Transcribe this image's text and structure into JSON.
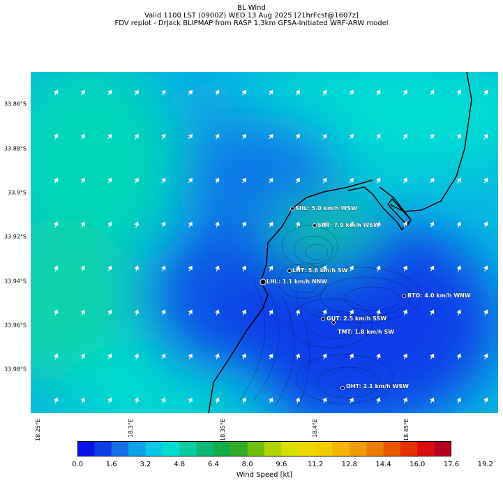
{
  "title": {
    "line1": "BL Wind",
    "line2": "Valid 1100 LST (0900Z) WED 13 Aug 2025 [21hrFcst@1607z]",
    "line3": "FDV replot - DrJack BLIPMAP from RASP 1.3km GFSA-Initiated WRF-ARW model"
  },
  "lat_ticks": [
    "33.86°S",
    "33.88°S",
    "33.9°S",
    "33.92°S",
    "33.94°S",
    "33.96°S",
    "33.98°S"
  ],
  "lon_ticks": [
    "18.25°E",
    "18.3°E",
    "18.35°E",
    "18.4°E",
    "18.45°E"
  ],
  "stations": [
    {
      "label": "SHL: 5.0 km/h WSW"
    },
    {
      "label": "SHT: 7.9 km/h WSW"
    },
    {
      "label": "LHT: 5.6 km/h SW"
    },
    {
      "label": "LHL: 1.1 km/h NNW"
    },
    {
      "label": "BTO: 4.0 km/h WNW"
    },
    {
      "label": "GUT: 2.5 km/h SSW"
    },
    {
      "label": "TMT: 1.8 km/h SW"
    },
    {
      "label": "OHT: 2.1 km/h WSW"
    }
  ],
  "colorbar": {
    "label": "Wind Speed [kt]",
    "ticks": [
      "0.0",
      "1.6",
      "3.2",
      "4.8",
      "6.4",
      "8.0",
      "9.6",
      "11.2",
      "12.8",
      "14.4",
      "16.0",
      "17.6",
      "19.2"
    ],
    "colors": [
      "#0a12e6",
      "#0c3ee8",
      "#1470ea",
      "#0aa2e8",
      "#06c8e6",
      "#04dcd0",
      "#06cca0",
      "#0aba74",
      "#10ac46",
      "#30ac24",
      "#70c00a",
      "#b0d400",
      "#d8de00",
      "#ecd800",
      "#f2cc00",
      "#f4b400",
      "#f09c00",
      "#ec7c00",
      "#e85800",
      "#e63000",
      "#dc0c10",
      "#b80020"
    ]
  }
}
